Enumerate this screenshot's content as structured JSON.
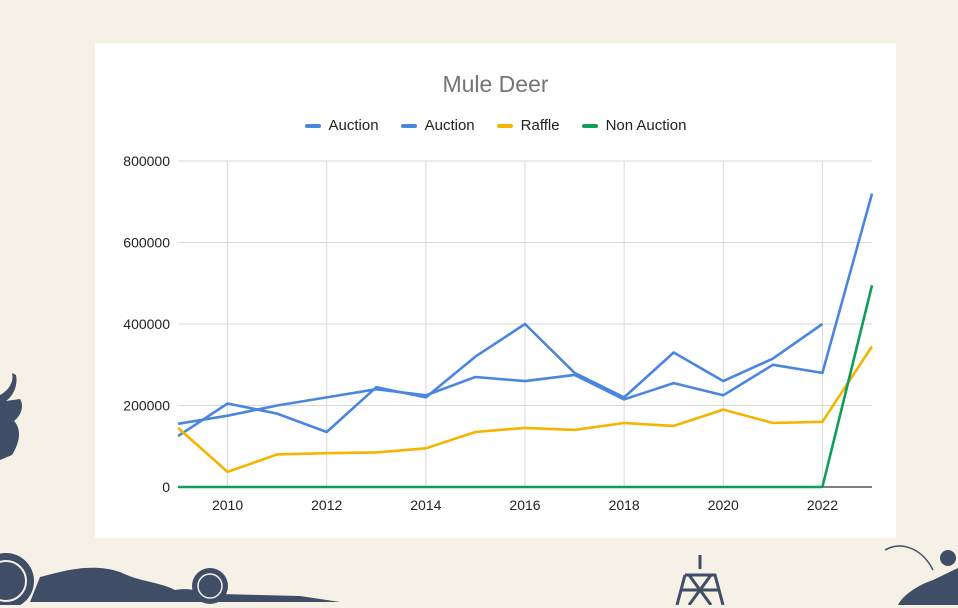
{
  "chart_data": {
    "type": "line",
    "title": "Mule Deer",
    "xlabel": "",
    "ylabel": "",
    "xlim": [
      2009,
      2023
    ],
    "ylim": [
      0,
      800000
    ],
    "x_ticks": [
      2010,
      2012,
      2014,
      2016,
      2018,
      2020,
      2022
    ],
    "y_ticks": [
      0,
      200000,
      400000,
      600000,
      800000
    ],
    "grid": true,
    "legend_position": "top",
    "x": [
      2009,
      2010,
      2011,
      2012,
      2013,
      2014,
      2015,
      2016,
      2017,
      2018,
      2019,
      2020,
      2021,
      2022,
      2023
    ],
    "series": [
      {
        "name": "Auction",
        "color": "#4a86e0",
        "values": [
          125000,
          205000,
          180000,
          135000,
          245000,
          220000,
          320000,
          400000,
          280000,
          220000,
          330000,
          260000,
          315000,
          400000,
          null
        ]
      },
      {
        "name": "Auction",
        "color": "#4a86e0",
        "values": [
          155000,
          175000,
          200000,
          220000,
          240000,
          225000,
          270000,
          260000,
          275000,
          215000,
          255000,
          225000,
          300000,
          280000,
          720000
        ]
      },
      {
        "name": "Raffle",
        "color": "#f4b400",
        "values": [
          145000,
          37000,
          80000,
          83000,
          85000,
          95000,
          135000,
          145000,
          140000,
          157000,
          150000,
          190000,
          157000,
          160000,
          345000
        ]
      },
      {
        "name": "Non Auction",
        "color": "#0f9d58",
        "values": [
          0,
          0,
          0,
          0,
          0,
          0,
          0,
          0,
          0,
          0,
          0,
          0,
          0,
          0,
          495000
        ]
      }
    ]
  },
  "decorations": {
    "left_icon": "deer-antler-icon",
    "bottom_left_icon": "seal-emblem-icon",
    "bottom_mid_icon": "turkey-icon",
    "bottom_right_icon": "fisherman-icon",
    "tower_icon": "tower-icon"
  }
}
